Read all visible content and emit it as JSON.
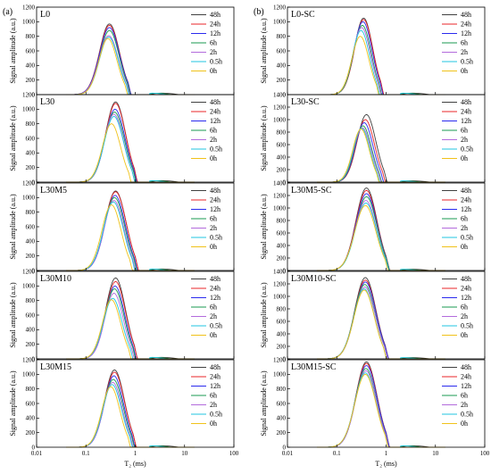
{
  "figure": {
    "parts": [
      "(a)",
      "(b)"
    ],
    "xlabel": "T₂ (ms)",
    "ylabel": "Signal amplitude (a.u.)"
  },
  "colors": {
    "48h": "#404040",
    "24h": "#e8242a",
    "12h": "#2a2aee",
    "6h": "#1a9a50",
    "2h": "#b36bdc",
    "0.5h": "#22c6e0",
    "0h": "#f0c21a"
  },
  "chart_data": [
    {
      "type": "line",
      "panel": "L0",
      "xscale": "log",
      "xlim": [
        0.01,
        100
      ],
      "ylim": [
        0,
        1200
      ],
      "xticks": [
        "0.01",
        "0.1",
        "1",
        "10",
        "100"
      ],
      "yticks": [
        "0",
        "200",
        "400",
        "600",
        "800",
        "1000",
        "1200"
      ],
      "legend_placement": "top-right",
      "series": [
        {
          "name": "48h",
          "peak": 970,
          "peak_t2": 0.3,
          "width": 0.36
        },
        {
          "name": "24h",
          "peak": 950,
          "peak_t2": 0.3,
          "width": 0.36
        },
        {
          "name": "12h",
          "peak": 920,
          "peak_t2": 0.3,
          "width": 0.36
        },
        {
          "name": "6h",
          "peak": 880,
          "peak_t2": 0.3,
          "width": 0.35
        },
        {
          "name": "2h",
          "peak": 810,
          "peak_t2": 0.29,
          "width": 0.35
        },
        {
          "name": "0.5h",
          "peak": 790,
          "peak_t2": 0.29,
          "width": 0.34
        },
        {
          "name": "0h",
          "peak": 770,
          "peak_t2": 0.28,
          "width": 0.33
        }
      ]
    },
    {
      "type": "line",
      "panel": "L30",
      "xscale": "log",
      "xlim": [
        0.01,
        100
      ],
      "ylim": [
        0,
        1200
      ],
      "xticks": [
        "0.01",
        "0.1",
        "1",
        "10",
        "100"
      ],
      "yticks": [
        "0",
        "200",
        "400",
        "600",
        "800",
        "1000",
        "1200"
      ],
      "legend_placement": "top-right",
      "series": [
        {
          "name": "48h",
          "peak": 1100,
          "peak_t2": 0.4,
          "width": 0.36
        },
        {
          "name": "24h",
          "peak": 1080,
          "peak_t2": 0.4,
          "width": 0.36
        },
        {
          "name": "12h",
          "peak": 1000,
          "peak_t2": 0.39,
          "width": 0.36
        },
        {
          "name": "6h",
          "peak": 960,
          "peak_t2": 0.38,
          "width": 0.36
        },
        {
          "name": "2h",
          "peak": 930,
          "peak_t2": 0.37,
          "width": 0.35
        },
        {
          "name": "0.5h",
          "peak": 900,
          "peak_t2": 0.37,
          "width": 0.35
        },
        {
          "name": "0h",
          "peak": 800,
          "peak_t2": 0.33,
          "width": 0.33
        }
      ]
    },
    {
      "type": "line",
      "panel": "L30M5",
      "xscale": "log",
      "xlim": [
        0.01,
        100
      ],
      "ylim": [
        0,
        1200
      ],
      "xticks": [
        "0.01",
        "0.1",
        "1",
        "10",
        "100"
      ],
      "yticks": [
        "0",
        "200",
        "400",
        "600",
        "800",
        "1000",
        "1200"
      ],
      "legend_placement": "top-right",
      "series": [
        {
          "name": "48h",
          "peak": 1090,
          "peak_t2": 0.4,
          "width": 0.38
        },
        {
          "name": "24h",
          "peak": 1080,
          "peak_t2": 0.4,
          "width": 0.38
        },
        {
          "name": "12h",
          "peak": 1030,
          "peak_t2": 0.39,
          "width": 0.37
        },
        {
          "name": "6h",
          "peak": 1000,
          "peak_t2": 0.38,
          "width": 0.37
        },
        {
          "name": "2h",
          "peak": 960,
          "peak_t2": 0.37,
          "width": 0.36
        },
        {
          "name": "0.5h",
          "peak": 940,
          "peak_t2": 0.36,
          "width": 0.36
        },
        {
          "name": "0h",
          "peak": 900,
          "peak_t2": 0.33,
          "width": 0.35
        }
      ]
    },
    {
      "type": "line",
      "panel": "L30M10",
      "xscale": "log",
      "xlim": [
        0.01,
        100
      ],
      "ylim": [
        0,
        1200
      ],
      "xticks": [
        "0.01",
        "0.1",
        "1",
        "10",
        "100"
      ],
      "yticks": [
        "0",
        "200",
        "400",
        "600",
        "800",
        "1000",
        "1200"
      ],
      "legend_placement": "top-right",
      "series": [
        {
          "name": "48h",
          "peak": 1110,
          "peak_t2": 0.4,
          "width": 0.36
        },
        {
          "name": "24h",
          "peak": 1060,
          "peak_t2": 0.4,
          "width": 0.36
        },
        {
          "name": "12h",
          "peak": 1000,
          "peak_t2": 0.39,
          "width": 0.35
        },
        {
          "name": "6h",
          "peak": 960,
          "peak_t2": 0.38,
          "width": 0.35
        },
        {
          "name": "2h",
          "peak": 900,
          "peak_t2": 0.37,
          "width": 0.34
        },
        {
          "name": "0.5h",
          "peak": 830,
          "peak_t2": 0.35,
          "width": 0.34
        },
        {
          "name": "0h",
          "peak": 810,
          "peak_t2": 0.33,
          "width": 0.33
        }
      ]
    },
    {
      "type": "line",
      "panel": "L30M15",
      "xscale": "log",
      "xlim": [
        0.01,
        100
      ],
      "ylim": [
        0,
        1200
      ],
      "xticks": [
        "0.01",
        "0.1",
        "1",
        "10",
        "100"
      ],
      "yticks": [
        "0",
        "200",
        "400",
        "600",
        "800",
        "1000",
        "1200"
      ],
      "legend_placement": "top-right",
      "series": [
        {
          "name": "48h",
          "peak": 1060,
          "peak_t2": 0.38,
          "width": 0.36
        },
        {
          "name": "24h",
          "peak": 1030,
          "peak_t2": 0.38,
          "width": 0.36
        },
        {
          "name": "12h",
          "peak": 980,
          "peak_t2": 0.37,
          "width": 0.35
        },
        {
          "name": "6h",
          "peak": 930,
          "peak_t2": 0.36,
          "width": 0.35
        },
        {
          "name": "2h",
          "peak": 890,
          "peak_t2": 0.35,
          "width": 0.34
        },
        {
          "name": "0.5h",
          "peak": 860,
          "peak_t2": 0.34,
          "width": 0.34
        },
        {
          "name": "0h",
          "peak": 830,
          "peak_t2": 0.32,
          "width": 0.33
        }
      ]
    },
    {
      "type": "line",
      "panel": "L0-SC",
      "xscale": "log",
      "xlim": [
        0.01,
        100
      ],
      "ylim": [
        0,
        1200
      ],
      "xticks": [
        "0.01",
        "0.1",
        "1",
        "10",
        "100"
      ],
      "yticks": [
        "0",
        "200",
        "400",
        "600",
        "800",
        "1000",
        "1200"
      ],
      "legend_placement": "top-right",
      "series": [
        {
          "name": "48h",
          "peak": 1050,
          "peak_t2": 0.35,
          "width": 0.33
        },
        {
          "name": "24h",
          "peak": 1030,
          "peak_t2": 0.35,
          "width": 0.33
        },
        {
          "name": "12h",
          "peak": 1000,
          "peak_t2": 0.34,
          "width": 0.33
        },
        {
          "name": "6h",
          "peak": 950,
          "peak_t2": 0.33,
          "width": 0.32
        },
        {
          "name": "2h",
          "peak": 920,
          "peak_t2": 0.32,
          "width": 0.32
        },
        {
          "name": "0.5h",
          "peak": 880,
          "peak_t2": 0.31,
          "width": 0.31
        },
        {
          "name": "0h",
          "peak": 800,
          "peak_t2": 0.3,
          "width": 0.31
        }
      ]
    },
    {
      "type": "line",
      "panel": "L30-SC",
      "xscale": "log",
      "xlim": [
        0.01,
        100
      ],
      "ylim": [
        0,
        1400
      ],
      "xticks": [
        "0.01",
        "0.1",
        "1",
        "10",
        "100"
      ],
      "yticks": [
        "0",
        "200",
        "400",
        "600",
        "800",
        "1000",
        "1200",
        "1400"
      ],
      "legend_placement": "top-right",
      "series": [
        {
          "name": "48h",
          "peak": 1080,
          "peak_t2": 0.4,
          "width": 0.34
        },
        {
          "name": "24h",
          "peak": 1000,
          "peak_t2": 0.38,
          "width": 0.33
        },
        {
          "name": "12h",
          "peak": 950,
          "peak_t2": 0.36,
          "width": 0.32
        },
        {
          "name": "6h",
          "peak": 900,
          "peak_t2": 0.34,
          "width": 0.31
        },
        {
          "name": "2h",
          "peak": 870,
          "peak_t2": 0.33,
          "width": 0.31
        },
        {
          "name": "0.5h",
          "peak": 860,
          "peak_t2": 0.32,
          "width": 0.3
        },
        {
          "name": "0h",
          "peak": 850,
          "peak_t2": 0.31,
          "width": 0.3
        }
      ]
    },
    {
      "type": "line",
      "panel": "L30M5-SC",
      "xscale": "log",
      "xlim": [
        0.01,
        100
      ],
      "ylim": [
        0,
        1400
      ],
      "xticks": [
        "0.01",
        "0.1",
        "1",
        "10",
        "100"
      ],
      "yticks": [
        "0",
        "200",
        "400",
        "600",
        "800",
        "1000",
        "1200",
        "1400"
      ],
      "legend_placement": "top-right",
      "series": [
        {
          "name": "48h",
          "peak": 1320,
          "peak_t2": 0.4,
          "width": 0.38
        },
        {
          "name": "24h",
          "peak": 1280,
          "peak_t2": 0.4,
          "width": 0.38
        },
        {
          "name": "12h",
          "peak": 1230,
          "peak_t2": 0.4,
          "width": 0.38
        },
        {
          "name": "6h",
          "peak": 1180,
          "peak_t2": 0.4,
          "width": 0.38
        },
        {
          "name": "2h",
          "peak": 1120,
          "peak_t2": 0.39,
          "width": 0.38
        },
        {
          "name": "0.5h",
          "peak": 1080,
          "peak_t2": 0.39,
          "width": 0.38
        },
        {
          "name": "0h",
          "peak": 1040,
          "peak_t2": 0.38,
          "width": 0.38
        }
      ]
    },
    {
      "type": "line",
      "panel": "L30M10-SC",
      "xscale": "log",
      "xlim": [
        0.01,
        100
      ],
      "ylim": [
        0,
        1400
      ],
      "xticks": [
        "0.01",
        "0.1",
        "1",
        "10",
        "100"
      ],
      "yticks": [
        "0",
        "200",
        "400",
        "600",
        "800",
        "1000",
        "1200",
        "1400"
      ],
      "legend_placement": "top-right",
      "series": [
        {
          "name": "48h",
          "peak": 1300,
          "peak_t2": 0.38,
          "width": 0.38
        },
        {
          "name": "24h",
          "peak": 1260,
          "peak_t2": 0.38,
          "width": 0.38
        },
        {
          "name": "12h",
          "peak": 1230,
          "peak_t2": 0.38,
          "width": 0.38
        },
        {
          "name": "6h",
          "peak": 1190,
          "peak_t2": 0.37,
          "width": 0.38
        },
        {
          "name": "2h",
          "peak": 1150,
          "peak_t2": 0.37,
          "width": 0.38
        },
        {
          "name": "0.5h",
          "peak": 1120,
          "peak_t2": 0.36,
          "width": 0.37
        },
        {
          "name": "0h",
          "peak": 1100,
          "peak_t2": 0.36,
          "width": 0.37
        }
      ]
    },
    {
      "type": "line",
      "panel": "L30M15-SC",
      "xscale": "log",
      "xlim": [
        0.01,
        100
      ],
      "ylim": [
        0,
        1200
      ],
      "xticks": [
        "0.01",
        "0.1",
        "1",
        "10",
        "100"
      ],
      "yticks": [
        "0",
        "200",
        "400",
        "600",
        "800",
        "1000",
        "1200"
      ],
      "legend_placement": "top-right",
      "series": [
        {
          "name": "48h",
          "peak": 1170,
          "peak_t2": 0.4,
          "width": 0.38
        },
        {
          "name": "24h",
          "peak": 1150,
          "peak_t2": 0.4,
          "width": 0.38
        },
        {
          "name": "12h",
          "peak": 1120,
          "peak_t2": 0.4,
          "width": 0.38
        },
        {
          "name": "6h",
          "peak": 1080,
          "peak_t2": 0.39,
          "width": 0.38
        },
        {
          "name": "2h",
          "peak": 1050,
          "peak_t2": 0.39,
          "width": 0.38
        },
        {
          "name": "0.5h",
          "peak": 1020,
          "peak_t2": 0.38,
          "width": 0.38
        },
        {
          "name": "0h",
          "peak": 1000,
          "peak_t2": 0.38,
          "width": 0.38
        }
      ]
    }
  ]
}
